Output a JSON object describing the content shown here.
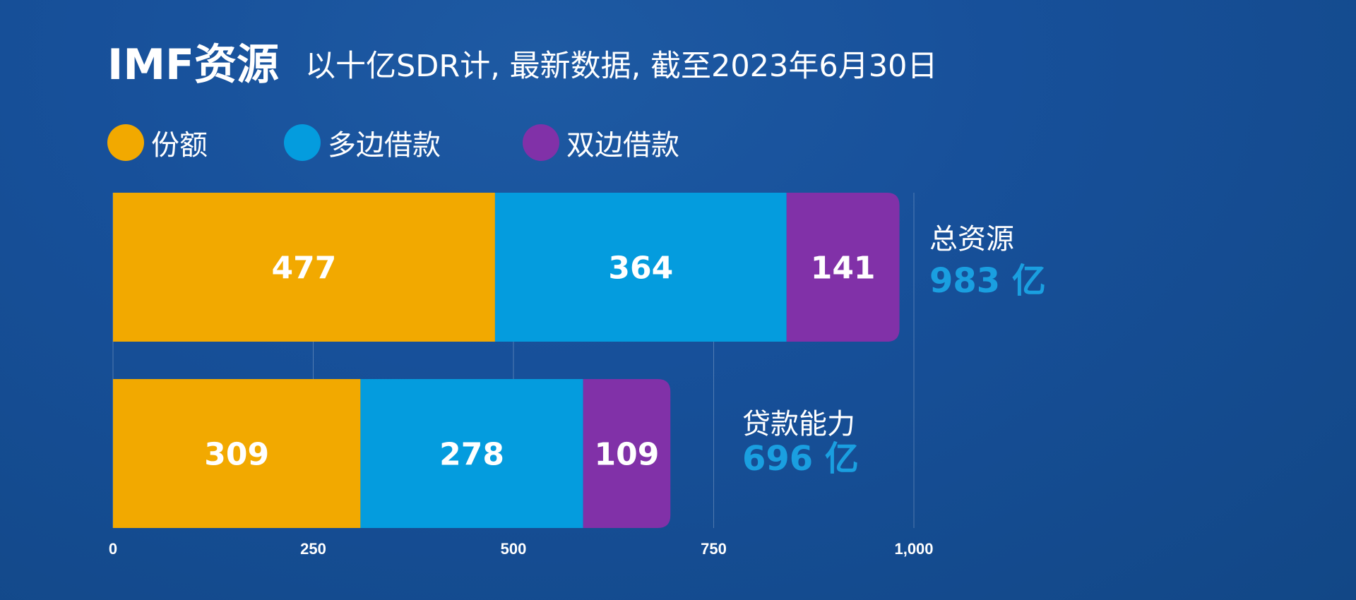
{
  "header": {
    "title": "IMF资源",
    "subtitle": "以十亿SDR计, 最新数据, 截至2023年6月30日"
  },
  "legend": [
    {
      "label": "份额",
      "color": "#f2a900"
    },
    {
      "label": "多边借款",
      "color": "#049cde"
    },
    {
      "label": "双边借款",
      "color": "#8131a8"
    }
  ],
  "chart_data": {
    "type": "bar",
    "orientation": "horizontal",
    "stacked": true,
    "categories": [
      "总资源",
      "贷款能力"
    ],
    "series": [
      {
        "name": "份额",
        "values": [
          477,
          309
        ],
        "color": "#f2a900"
      },
      {
        "name": "多边借款",
        "values": [
          364,
          278
        ],
        "color": "#049cde"
      },
      {
        "name": "双边借款",
        "values": [
          141,
          109
        ],
        "color": "#8131a8"
      }
    ],
    "totals": [
      {
        "label": "总资源",
        "value_text": "983 亿"
      },
      {
        "label": "贷款能力",
        "value_text": "696 亿"
      }
    ],
    "x_ticks": [
      "0",
      "250",
      "500",
      "750",
      "1,000"
    ],
    "x_tick_values": [
      0,
      250,
      500,
      750,
      1000
    ],
    "xlim": [
      0,
      1000
    ],
    "grid": true,
    "legend_position": "top-left"
  }
}
